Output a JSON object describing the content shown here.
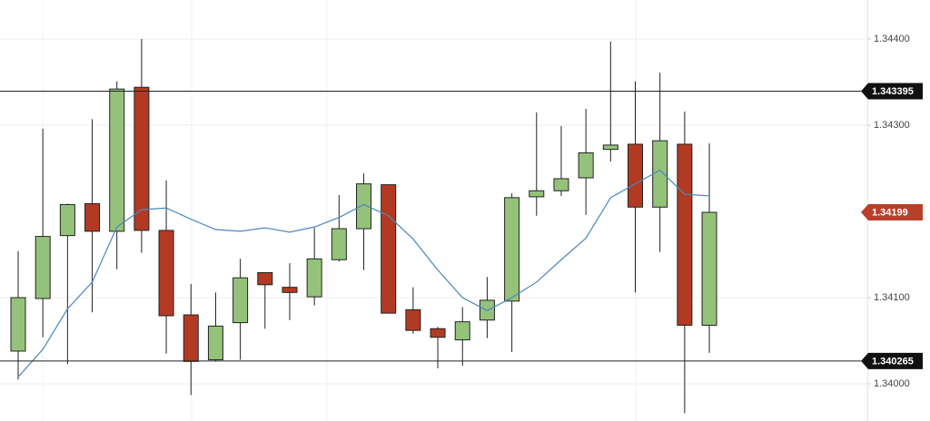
{
  "chart_data": {
    "type": "candlestick",
    "ylim": [
      1.339569,
      1.344453
    ],
    "yticks": [
      {
        "value": 1.34,
        "label": "1.34000"
      },
      {
        "value": 1.341,
        "label": "1.34100"
      },
      {
        "value": 1.343,
        "label": "1.34300"
      },
      {
        "value": 1.344,
        "label": "1.34400"
      }
    ],
    "grid": true,
    "up_color": "#95c27b",
    "down_color": "#b33a22",
    "open": [
      1.34038,
      1.34099,
      1.34172,
      1.34209,
      1.34177,
      1.34344,
      1.34178,
      1.3408,
      1.34028,
      1.34071,
      1.34129,
      1.34112,
      1.34101,
      1.34144,
      1.3418,
      1.34231,
      1.34086,
      1.34064,
      1.34051,
      1.34074,
      1.34096,
      1.34217,
      1.34224,
      1.34239,
      1.34272,
      1.34278,
      1.34205,
      1.34278,
      1.34068
    ],
    "high": [
      1.34154,
      1.34296,
      1.34209,
      1.34307,
      1.34351,
      1.344,
      1.34236,
      1.34116,
      1.34106,
      1.34145,
      1.34129,
      1.3414,
      1.34181,
      1.34219,
      1.34244,
      1.34231,
      1.34112,
      1.34066,
      1.34089,
      1.34124,
      1.34221,
      1.34315,
      1.34299,
      1.34319,
      1.34397,
      1.34351,
      1.34361,
      1.34316,
      1.34279
    ],
    "low": [
      1.34005,
      1.34054,
      1.34023,
      1.34083,
      1.34133,
      1.34152,
      1.34035,
      1.33987,
      1.34026,
      1.34028,
      1.34064,
      1.34074,
      1.34091,
      1.34142,
      1.34132,
      1.34082,
      1.34058,
      1.34018,
      1.34021,
      1.34053,
      1.34037,
      1.34195,
      1.34218,
      1.34196,
      1.34258,
      1.34106,
      1.34153,
      1.33966,
      1.34036
    ],
    "close": [
      1.341,
      1.34171,
      1.34208,
      1.34177,
      1.34342,
      1.34178,
      1.34079,
      1.34026,
      1.34067,
      1.34123,
      1.34115,
      1.34106,
      1.34145,
      1.3418,
      1.34232,
      1.34082,
      1.34062,
      1.34054,
      1.34072,
      1.34097,
      1.34216,
      1.34224,
      1.34238,
      1.34268,
      1.34277,
      1.34205,
      1.34282,
      1.34068,
      1.34199
    ],
    "moving_average": {
      "color": "#4a87c0",
      "values": [
        1.34008,
        1.3404,
        1.34087,
        1.34118,
        1.34182,
        1.34202,
        1.34204,
        1.34191,
        1.34179,
        1.34177,
        1.34181,
        1.34176,
        1.34182,
        1.34193,
        1.34208,
        1.34195,
        1.34168,
        1.34132,
        1.341,
        1.34085,
        1.341,
        1.34118,
        1.34144,
        1.34169,
        1.34216,
        1.34232,
        1.34248,
        1.3422,
        1.34218
      ]
    },
    "hlines": [
      1.343395,
      1.340265
    ],
    "price_tag": {
      "value": 1.34199,
      "color": "#b8402a"
    }
  }
}
